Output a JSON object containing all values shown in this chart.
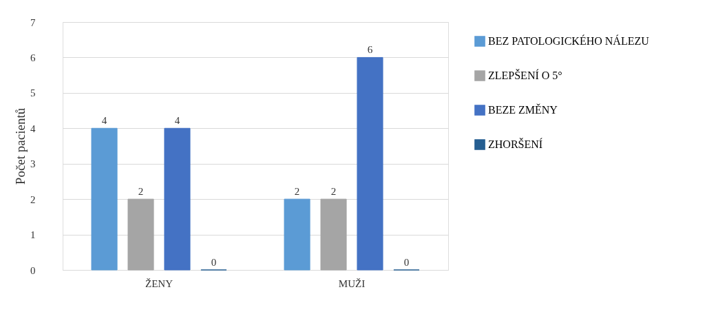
{
  "chart_data": {
    "type": "bar",
    "ylabel": "Počet pacientů",
    "categories": [
      "ŽENY",
      "MUŽI"
    ],
    "series": [
      {
        "name": "BEZ PATOLOGICKÉHO NÁLEZU",
        "color": "#5b9bd5",
        "values": [
          4,
          2
        ],
        "value_labels": [
          "4",
          "2"
        ]
      },
      {
        "name": "ZLEPŠENÍ O 5°",
        "color": "#a5a5a5",
        "values": [
          2,
          2
        ],
        "value_labels": [
          "2",
          "2"
        ]
      },
      {
        "name": "BEZE ZMĚNY",
        "color": "#4472c4",
        "values": [
          4,
          6
        ],
        "value_labels": [
          "4",
          "6"
        ]
      },
      {
        "name": "ZHORŠENÍ",
        "color": "#255e91",
        "values": [
          0,
          0
        ],
        "value_labels": [
          "0",
          "0"
        ]
      }
    ],
    "ylim": [
      0,
      7
    ],
    "yticks": [
      0,
      1,
      2,
      3,
      4,
      5,
      6,
      7
    ],
    "grid": "y",
    "legend": "right"
  }
}
